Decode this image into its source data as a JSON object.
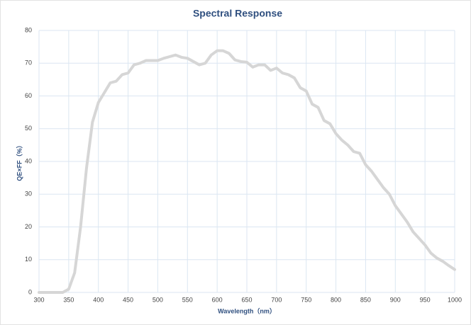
{
  "chart_data": {
    "type": "line",
    "title": "Spectral Response",
    "xlabel": "Wavelength（nm）",
    "ylabel": "QE×FF（%）",
    "x": [
      300,
      340,
      350,
      360,
      370,
      380,
      390,
      400,
      410,
      420,
      430,
      440,
      450,
      460,
      470,
      480,
      490,
      500,
      510,
      520,
      530,
      540,
      550,
      560,
      570,
      580,
      590,
      600,
      610,
      620,
      630,
      640,
      650,
      660,
      670,
      680,
      690,
      700,
      710,
      720,
      730,
      740,
      750,
      760,
      770,
      780,
      790,
      800,
      810,
      820,
      830,
      840,
      850,
      860,
      870,
      880,
      890,
      900,
      910,
      920,
      930,
      940,
      950,
      960,
      970,
      980,
      990,
      1000
    ],
    "series": [
      {
        "name": "QE×FF",
        "color": "#d6d6d6",
        "values": [
          0,
          0,
          1,
          6,
          20,
          38,
          52,
          58,
          61,
          64,
          64.5,
          66.5,
          67,
          69.5,
          70,
          70.8,
          70.8,
          70.8,
          71.5,
          72,
          72.5,
          71.8,
          71.5,
          70.5,
          69.5,
          70,
          72.5,
          73.8,
          73.8,
          73,
          71,
          70.5,
          70.3,
          68.8,
          69.5,
          69.5,
          67.8,
          68.5,
          67,
          66.5,
          65.5,
          62.5,
          61.5,
          57.5,
          56.5,
          52.5,
          51.5,
          48.5,
          46.5,
          45,
          43,
          42.5,
          39,
          37,
          34.5,
          32,
          30,
          26.5,
          24,
          21.5,
          18.5,
          16.5,
          14.5,
          12,
          10.5,
          9.5,
          8.2,
          7
        ]
      }
    ],
    "xlim": [
      300,
      1000
    ],
    "xticks": [
      300,
      350,
      400,
      450,
      500,
      550,
      600,
      650,
      700,
      750,
      800,
      850,
      900,
      950,
      1000
    ],
    "ylim": [
      0,
      80
    ],
    "yticks": [
      0,
      10,
      20,
      30,
      40,
      50,
      60,
      70,
      80
    ],
    "grid": true
  }
}
